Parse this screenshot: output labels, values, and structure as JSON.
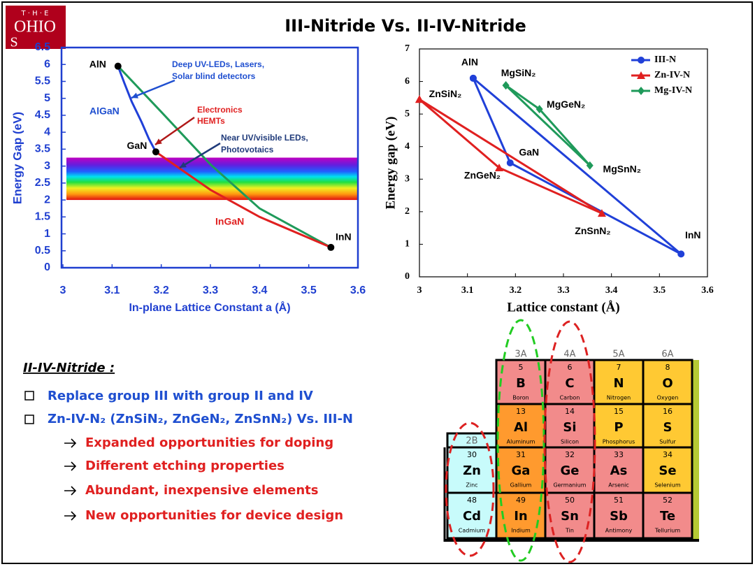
{
  "logo": {
    "top": "T · H · E",
    "name": "OHIO",
    "sub": "S"
  },
  "title": "III-Nitride Vs. II-IV-Nitride",
  "chart_data": [
    {
      "type": "line",
      "xlabel": "In-plane Lattice Constant a (Å)",
      "ylabel": "Energy Gap (eV)",
      "xlim": [
        3,
        3.6
      ],
      "xticks": [
        3,
        3.1,
        3.2,
        3.3,
        3.4,
        3.5,
        3.6
      ],
      "ylim": [
        0,
        6.5
      ],
      "yticks": [
        0,
        0.5,
        1,
        1.5,
        2,
        2.5,
        3,
        3.5,
        4,
        4.5,
        5,
        5.5,
        6,
        6.5
      ],
      "band": [
        2,
        3.25
      ],
      "series": [
        {
          "color": "#2040d8",
          "x": [
            3.112,
            3.125,
            3.14,
            3.16,
            3.175,
            3.189
          ],
          "values": [
            5.95,
            5.45,
            4.9,
            4.3,
            3.8,
            3.42
          ]
        },
        {
          "color": "#1f9a5a",
          "x": [
            3.112,
            3.2,
            3.3,
            3.4,
            3.545
          ],
          "values": [
            5.95,
            4.6,
            3.05,
            1.75,
            0.6
          ]
        },
        {
          "color": "#e02020",
          "x": [
            3.189,
            3.3,
            3.4,
            3.545
          ],
          "values": [
            3.42,
            2.3,
            1.5,
            0.6
          ]
        }
      ],
      "points": [
        {
          "label": "AlN",
          "x": 3.112,
          "y": 5.95
        },
        {
          "label": "GaN",
          "x": 3.189,
          "y": 3.42
        },
        {
          "label": "InN",
          "x": 3.545,
          "y": 0.6
        }
      ],
      "annotations": [
        [
          "Deep UV-LEDs, Lasers,",
          "Solar blind detectors"
        ],
        "AlGaN",
        [
          "Electronics",
          "HEMTs"
        ],
        [
          "Near UV/visible LEDs,",
          "Photovotaics"
        ],
        "InGaN"
      ]
    },
    {
      "type": "line",
      "xlabel": "Lattice constant (Å)",
      "ylabel": "Energy gap (eV)",
      "xlim": [
        3,
        3.6
      ],
      "xticks": [
        3,
        3.1,
        3.2,
        3.3,
        3.4,
        3.5,
        3.6
      ],
      "ylim": [
        0,
        7
      ],
      "yticks": [
        0,
        1,
        2,
        3,
        4,
        5,
        6,
        7
      ],
      "legend": "upper right",
      "series": [
        {
          "name": "III-N",
          "color": "#2040d8",
          "marker": "circle",
          "x": [
            3.112,
            3.189,
            3.545,
            3.112
          ],
          "values": [
            6.1,
            3.5,
            0.7,
            6.1
          ],
          "labels": [
            "AlN",
            "GaN",
            "InN",
            null
          ]
        },
        {
          "name": "Zn-IV-N",
          "color": "#e02020",
          "marker": "triangle",
          "x": [
            3.0,
            3.166,
            3.38,
            3.0
          ],
          "values": [
            5.45,
            3.35,
            1.95,
            5.45
          ],
          "labels": [
            "ZnSiN₂",
            "ZnGeN₂",
            "ZnSnN₂",
            null
          ]
        },
        {
          "name": "Mg-IV-N",
          "color": "#1f9a5a",
          "marker": "diamond",
          "x": [
            3.18,
            3.25,
            3.355,
            3.18
          ],
          "values": [
            5.88,
            5.15,
            3.42,
            5.88
          ],
          "labels": [
            "MgSiN₂",
            "MgGeN₂",
            "MgSnN₂",
            null
          ]
        }
      ]
    }
  ],
  "bullets": {
    "heading": "II-IV-Nitride :",
    "items": [
      "Replace group III with group II and IV",
      "Zn-IV-N₂ (ZnSiN₂, ZnGeN₂, ZnSnN₂) Vs. III-N"
    ],
    "subitems": [
      "Expanded opportunities for doping",
      "Different etching properties",
      "Abundant, inexpensive elements",
      "New opportunities for device design"
    ]
  },
  "periodic_table": {
    "groups": [
      "2B",
      "3A",
      "4A",
      "5A",
      "6A"
    ],
    "rows": [
      [
        null,
        {
          "number": 5,
          "symbol": "B",
          "name": "Boron",
          "color": "#f28b8b"
        },
        {
          "number": 6,
          "symbol": "C",
          "name": "Carbon",
          "color": "#f28b8b"
        },
        {
          "number": 7,
          "symbol": "N",
          "name": "Nitrogen",
          "color": "#ffc933"
        },
        {
          "number": 8,
          "symbol": "O",
          "name": "Oxygen",
          "color": "#ffc933"
        }
      ],
      [
        null,
        {
          "number": 13,
          "symbol": "Al",
          "name": "Aluminum",
          "color": "#ff9a2e"
        },
        {
          "number": 14,
          "symbol": "Si",
          "name": "Silicon",
          "color": "#f28b8b"
        },
        {
          "number": 15,
          "symbol": "P",
          "name": "Phosphorus",
          "color": "#ffc933"
        },
        {
          "number": 16,
          "symbol": "S",
          "name": "Sulfur",
          "color": "#ffc933"
        }
      ],
      [
        {
          "number": 30,
          "symbol": "Zn",
          "name": "Zinc",
          "color": "#c8fbfb"
        },
        {
          "number": 31,
          "symbol": "Ga",
          "name": "Gallium",
          "color": "#ff9a2e"
        },
        {
          "number": 32,
          "symbol": "Ge",
          "name": "Germanium",
          "color": "#f28b8b"
        },
        {
          "number": 33,
          "symbol": "As",
          "name": "Arsenic",
          "color": "#f28b8b"
        },
        {
          "number": 34,
          "symbol": "Se",
          "name": "Selenium",
          "color": "#ffc933"
        }
      ],
      [
        {
          "number": 48,
          "symbol": "Cd",
          "name": "Cadmium",
          "color": "#c8fbfb"
        },
        {
          "number": 49,
          "symbol": "In",
          "name": "Indium",
          "color": "#ff9a2e"
        },
        {
          "number": 50,
          "symbol": "Sn",
          "name": "Tin",
          "color": "#f28b8b"
        },
        {
          "number": 51,
          "symbol": "Sb",
          "name": "Antimony",
          "color": "#f28b8b"
        },
        {
          "number": 52,
          "symbol": "Te",
          "name": "Tellurium",
          "color": "#f28b8b"
        }
      ]
    ]
  }
}
